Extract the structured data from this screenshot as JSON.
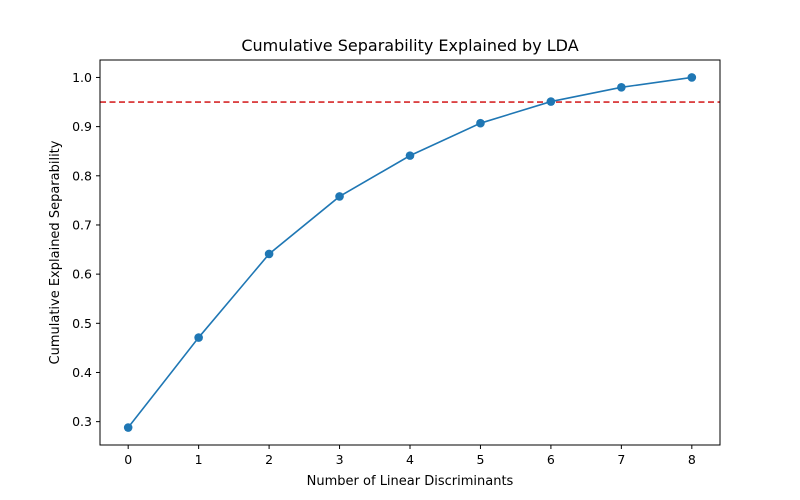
{
  "chart_data": {
    "type": "line",
    "title": "Cumulative Separability Explained by LDA",
    "xlabel": "Number of Linear Discriminants",
    "ylabel": "Cumulative Explained Separability",
    "x": [
      0,
      1,
      2,
      3,
      4,
      5,
      6,
      7,
      8
    ],
    "series": [
      {
        "values": [
          0.288,
          0.471,
          0.641,
          0.758,
          0.841,
          0.907,
          0.951,
          0.98,
          1.0
        ],
        "color": "#1f77b4",
        "marker": "circle"
      }
    ],
    "reference_line": {
      "y": 0.95,
      "color": "#d62728",
      "style": "dashed"
    },
    "xticks": [
      "0",
      "1",
      "2",
      "3",
      "4",
      "5",
      "6",
      "7",
      "8"
    ],
    "yticks": [
      "0.3",
      "0.4",
      "0.5",
      "0.6",
      "0.7",
      "0.8",
      "0.9",
      "1.0"
    ],
    "xlim": [
      -0.4,
      8.4
    ],
    "ylim": [
      0.2525,
      1.0355
    ],
    "grid": false,
    "legend": false
  }
}
